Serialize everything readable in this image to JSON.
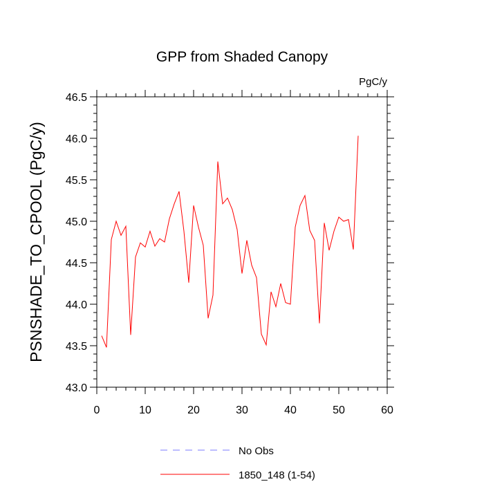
{
  "chart_data": {
    "type": "line",
    "title": "GPP from Shaded Canopy",
    "units_label": "PgC/y",
    "ylabel": "PSNSHADE_TO_CPOOL  (PgC/y)",
    "xlabel": "",
    "xlim": [
      0,
      60
    ],
    "ylim": [
      43.0,
      46.5
    ],
    "x_ticks": [
      "0",
      "10",
      "20",
      "30",
      "40",
      "50",
      "60"
    ],
    "y_ticks": [
      "43.0",
      "43.5",
      "44.0",
      "44.5",
      "45.0",
      "45.5",
      "46.0",
      "46.5"
    ],
    "grid": false,
    "legend_position": "bottom",
    "series": [
      {
        "name": "No Obs",
        "color": "#7b7bff",
        "dashed": true,
        "x": [],
        "values": []
      },
      {
        "name": "1850_148 (1-54)",
        "color": "#ff0000",
        "dashed": false,
        "x": [
          1,
          2,
          3,
          4,
          5,
          6,
          7,
          8,
          9,
          10,
          11,
          12,
          13,
          14,
          15,
          16,
          17,
          18,
          19,
          20,
          21,
          22,
          23,
          24,
          25,
          26,
          27,
          28,
          29,
          30,
          31,
          32,
          33,
          34,
          35,
          36,
          37,
          38,
          39,
          40,
          41,
          42,
          43,
          44,
          45,
          46,
          47,
          48,
          49,
          50,
          51,
          52,
          53,
          54
        ],
        "values": [
          43.62,
          43.48,
          44.78,
          45.0,
          44.83,
          44.94,
          43.63,
          44.57,
          44.74,
          44.69,
          44.88,
          44.7,
          44.79,
          44.75,
          45.03,
          45.21,
          45.36,
          44.88,
          44.26,
          45.19,
          44.93,
          44.71,
          43.83,
          44.11,
          45.72,
          45.21,
          45.28,
          45.14,
          44.9,
          44.37,
          44.77,
          44.47,
          44.32,
          43.64,
          43.51,
          44.15,
          43.97,
          44.25,
          44.02,
          44.0,
          44.93,
          45.19,
          45.31,
          44.89,
          44.77,
          43.77,
          44.98,
          44.65,
          44.88,
          45.05,
          45.0,
          45.02,
          44.66,
          46.03
        ]
      }
    ]
  }
}
